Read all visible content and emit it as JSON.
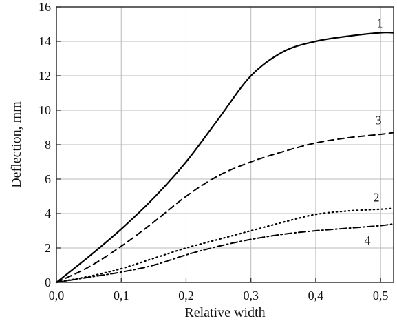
{
  "chart_data": {
    "type": "line",
    "title": "",
    "xlabel": "Relative width",
    "ylabel": "Deflection, mm",
    "xlim": [
      0,
      0.52
    ],
    "ylim": [
      0,
      16
    ],
    "grid": true,
    "legend": "none",
    "x_ticks": [
      {
        "value": 0.0,
        "label": "0,0"
      },
      {
        "value": 0.1,
        "label": "0,1"
      },
      {
        "value": 0.2,
        "label": "0,2"
      },
      {
        "value": 0.3,
        "label": "0,3"
      },
      {
        "value": 0.4,
        "label": "0,4"
      },
      {
        "value": 0.5,
        "label": "0,5"
      }
    ],
    "y_ticks": [
      {
        "value": 0,
        "label": "0"
      },
      {
        "value": 2,
        "label": "2"
      },
      {
        "value": 4,
        "label": "4"
      },
      {
        "value": 6,
        "label": "6"
      },
      {
        "value": 8,
        "label": "8"
      },
      {
        "value": 10,
        "label": "10"
      },
      {
        "value": 12,
        "label": "12"
      },
      {
        "value": 14,
        "label": "14"
      },
      {
        "value": 16,
        "label": "16"
      }
    ],
    "series": [
      {
        "label": "1",
        "style": "solid",
        "x": [
          0,
          0.05,
          0.1,
          0.15,
          0.2,
          0.25,
          0.3,
          0.35,
          0.4,
          0.45,
          0.5,
          0.52
        ],
        "values": [
          0,
          1.5,
          3.1,
          4.9,
          7.0,
          9.5,
          12.0,
          13.4,
          14.0,
          14.3,
          14.5,
          14.5
        ]
      },
      {
        "label": "2",
        "style": "dotted",
        "x": [
          0,
          0.05,
          0.1,
          0.15,
          0.2,
          0.25,
          0.3,
          0.35,
          0.4,
          0.45,
          0.5,
          0.52
        ],
        "values": [
          0,
          0.35,
          0.8,
          1.4,
          2.0,
          2.5,
          3.0,
          3.5,
          3.95,
          4.15,
          4.25,
          4.3
        ]
      },
      {
        "label": "3",
        "style": "dashed",
        "x": [
          0,
          0.05,
          0.1,
          0.15,
          0.2,
          0.25,
          0.3,
          0.35,
          0.4,
          0.45,
          0.5,
          0.52
        ],
        "values": [
          0,
          0.9,
          2.1,
          3.5,
          5.0,
          6.2,
          7.0,
          7.6,
          8.1,
          8.4,
          8.6,
          8.7
        ]
      },
      {
        "label": "4",
        "style": "dash-dot",
        "x": [
          0,
          0.05,
          0.1,
          0.15,
          0.2,
          0.25,
          0.3,
          0.35,
          0.4,
          0.45,
          0.5,
          0.52
        ],
        "values": [
          0,
          0.3,
          0.6,
          1.0,
          1.6,
          2.1,
          2.5,
          2.8,
          3.0,
          3.15,
          3.3,
          3.4
        ]
      }
    ]
  }
}
